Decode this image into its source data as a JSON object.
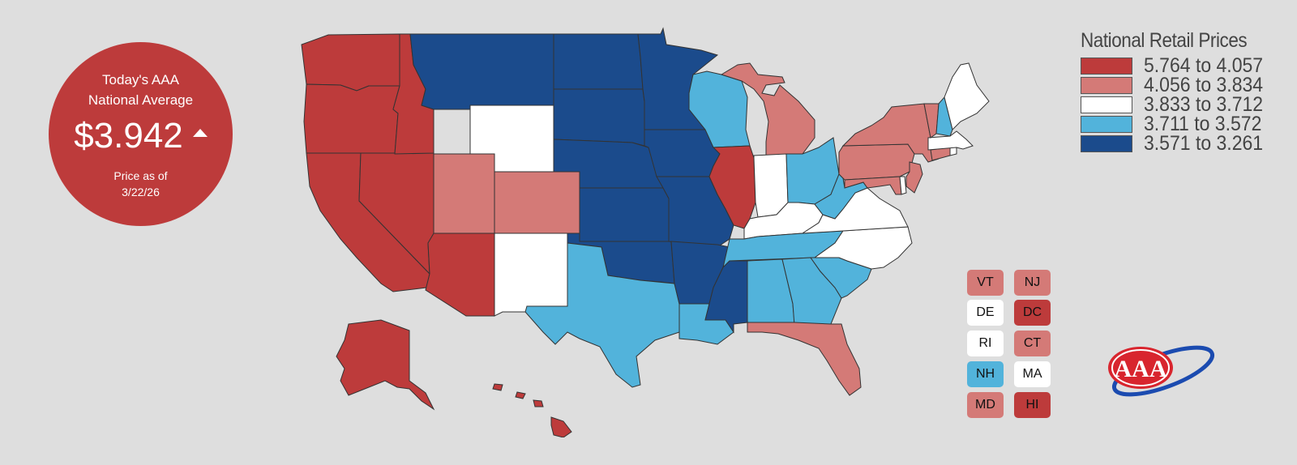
{
  "national_average": {
    "title_line1": "Today's AAA",
    "title_line2": "National Average",
    "price": "$3.942",
    "trend": "up",
    "date_line1": "Price as of",
    "date_line2": "3/22/26",
    "color": "#bd3b3b"
  },
  "legend": {
    "title": "National Retail Prices",
    "items": [
      {
        "label": "5.764 to 4.057",
        "color": "#bd3b3b"
      },
      {
        "label": "4.056 to 3.834",
        "color": "#d47a77"
      },
      {
        "label": "3.833 to 3.712",
        "color": "#ffffff"
      },
      {
        "label": "3.711 to 3.572",
        "color": "#52b3db"
      },
      {
        "label": "3.571 to 3.261",
        "color": "#1b4b8c"
      }
    ]
  },
  "small_states": [
    {
      "code": "VT",
      "tier": 1
    },
    {
      "code": "NJ",
      "tier": 1
    },
    {
      "code": "DE",
      "tier": 2
    },
    {
      "code": "DC",
      "tier": 0
    },
    {
      "code": "RI",
      "tier": 2
    },
    {
      "code": "CT",
      "tier": 1
    },
    {
      "code": "NH",
      "tier": 3
    },
    {
      "code": "MA",
      "tier": 2
    },
    {
      "code": "MD",
      "tier": 1
    },
    {
      "code": "HI",
      "tier": 0
    }
  ],
  "state_tiers": {
    "WA": 0,
    "OR": 0,
    "CA": 0,
    "NV": 0,
    "ID": 0,
    "AZ": 0,
    "IL": 0,
    "AK": 0,
    "HI": 0,
    "UT": 1,
    "CO": 1,
    "MI": 1,
    "NY": 1,
    "PA": 1,
    "FL": 1,
    "NJ": 1,
    "VT": 1,
    "CT": 1,
    "MD": 1,
    "WY": 2,
    "NM": 2,
    "IN": 2,
    "KY": 2,
    "VA": 2,
    "NC": 2,
    "ME": 2,
    "MA": 2,
    "RI": 2,
    "DE": 2,
    "WI": 3,
    "TX": 3,
    "LA": 3,
    "TN": 3,
    "AL": 3,
    "GA": 3,
    "SC": 3,
    "OH": 3,
    "WV": 3,
    "NH": 3,
    "MT": 4,
    "ND": 4,
    "SD": 4,
    "NE": 4,
    "MN": 4,
    "IA": 4,
    "KS": 4,
    "MO": 4,
    "OK": 4,
    "AR": 4,
    "MS": 4
  },
  "logo": {
    "text": "AAA",
    "name": "aaa-logo"
  }
}
